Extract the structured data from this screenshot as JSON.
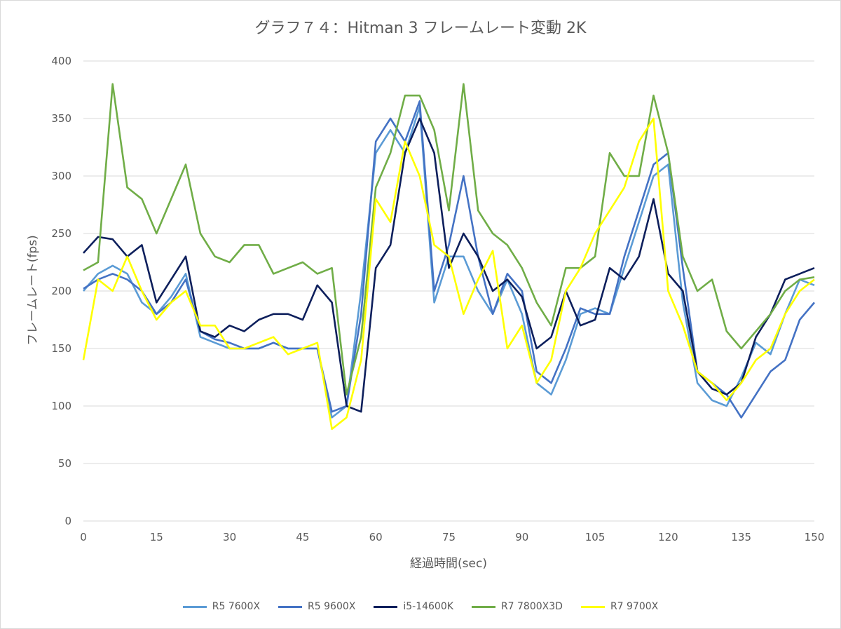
{
  "chart_data": {
    "type": "line",
    "title": "グラフ７４：Hitman 3 フレームレート変動 2K",
    "xlabel": "経過時間(sec)",
    "ylabel": "フレームレート(fps)",
    "xlim": [
      0,
      150
    ],
    "ylim": [
      0,
      400
    ],
    "xticks": [
      0,
      15,
      30,
      45,
      60,
      75,
      90,
      105,
      120,
      135,
      150
    ],
    "yticks": [
      0,
      50,
      100,
      150,
      200,
      250,
      300,
      350,
      400
    ],
    "grid": true,
    "legend_position": "bottom",
    "x": [
      0,
      3,
      6,
      9,
      12,
      15,
      18,
      21,
      24,
      27,
      30,
      33,
      36,
      39,
      42,
      45,
      48,
      51,
      54,
      57,
      60,
      63,
      66,
      69,
      72,
      75,
      78,
      81,
      84,
      87,
      90,
      93,
      96,
      99,
      102,
      105,
      108,
      111,
      114,
      117,
      120,
      123,
      126,
      129,
      132,
      135,
      138,
      141,
      144,
      147,
      150
    ],
    "series": [
      {
        "name": "R5 7600X",
        "color": "#5b9bd5",
        "values": [
          200,
          215,
          222,
          215,
          190,
          180,
          195,
          215,
          160,
          155,
          150,
          150,
          150,
          155,
          150,
          150,
          150,
          90,
          100,
          200,
          320,
          340,
          320,
          360,
          190,
          230,
          230,
          200,
          180,
          210,
          180,
          120,
          110,
          140,
          180,
          185,
          180,
          220,
          260,
          300,
          310,
          190,
          120,
          105,
          100,
          125,
          155,
          145,
          180,
          210,
          205
        ]
      },
      {
        "name": "R5 9600X",
        "color": "#4472c4",
        "values": [
          202,
          210,
          215,
          210,
          200,
          180,
          190,
          210,
          165,
          158,
          155,
          150,
          150,
          155,
          150,
          150,
          150,
          95,
          100,
          180,
          330,
          350,
          330,
          365,
          200,
          240,
          300,
          230,
          180,
          215,
          200,
          130,
          120,
          150,
          185,
          180,
          180,
          230,
          270,
          310,
          320,
          220,
          130,
          120,
          110,
          90,
          110,
          130,
          140,
          175,
          190
        ]
      },
      {
        "name": "i5-14600K",
        "color": "#0d1f5c",
        "values": [
          233,
          247,
          245,
          230,
          240,
          190,
          210,
          230,
          165,
          160,
          170,
          165,
          175,
          180,
          180,
          175,
          205,
          190,
          100,
          95,
          220,
          240,
          320,
          350,
          320,
          220,
          250,
          230,
          200,
          210,
          195,
          150,
          160,
          200,
          170,
          175,
          220,
          210,
          230,
          280,
          215,
          200,
          130,
          115,
          110,
          120,
          160,
          180,
          210,
          215,
          220
        ]
      },
      {
        "name": "R7 7800X3D",
        "color": "#70ad47",
        "values": [
          218,
          225,
          380,
          290,
          280,
          250,
          280,
          310,
          250,
          230,
          225,
          240,
          240,
          215,
          220,
          225,
          215,
          220,
          110,
          160,
          290,
          320,
          370,
          370,
          340,
          270,
          380,
          270,
          250,
          240,
          220,
          190,
          170,
          220,
          220,
          230,
          320,
          300,
          300,
          370,
          320,
          230,
          200,
          210,
          165,
          150,
          165,
          180,
          200,
          210,
          212
        ]
      },
      {
        "name": "R7 9700X",
        "color": "#ffff00",
        "values": [
          140,
          210,
          200,
          230,
          200,
          175,
          190,
          200,
          170,
          170,
          150,
          150,
          155,
          160,
          145,
          150,
          155,
          80,
          90,
          140,
          280,
          260,
          330,
          300,
          240,
          230,
          180,
          210,
          235,
          150,
          170,
          120,
          140,
          200,
          220,
          250,
          270,
          290,
          330,
          350,
          200,
          170,
          130,
          120,
          105,
          120,
          140,
          150,
          180,
          200,
          210
        ]
      }
    ]
  }
}
